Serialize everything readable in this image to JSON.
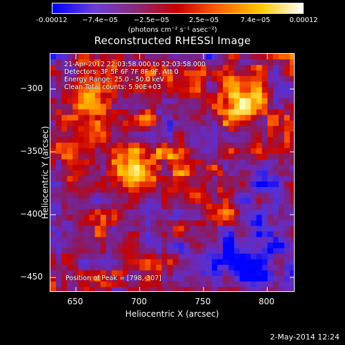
{
  "colorbar": {
    "ticks": [
      "-0.00012",
      "−7.4e−05",
      "−2.5e−05",
      "2.5e−05",
      "7.4e−05",
      "0.00012"
    ],
    "tick_values": [
      -0.00012,
      -7.4e-05,
      -2.5e-05,
      2.5e-05,
      7.4e-05,
      0.00012
    ],
    "units_label": "(photons cm⁻² s⁻¹ asec⁻²)",
    "colors": [
      "#0000ff",
      "#6a3fd6",
      "#8a2a7a",
      "#c80000",
      "#ff6400",
      "#ffc800",
      "#ffffff"
    ]
  },
  "chart_data": {
    "type": "heatmap",
    "title": "Reconstructed RHESSI Image",
    "xlabel": "Heliocentric X (arcsec)",
    "ylabel": "Heliocentric Y (arcsec)",
    "xlim": [
      630,
      822
    ],
    "ylim": [
      -462,
      -272
    ],
    "x_ticks": [
      650,
      700,
      750,
      800
    ],
    "y_ticks": [
      -300,
      -350,
      -400,
      -450
    ],
    "peak": [
      798,
      -307
    ],
    "info_lines": [
      "21-Apr-2012 22:03:58.000 to 22:03:58.000",
      "Detectors: 3F 5F 6F 7F 8F 9F, Att 0",
      "Energy Range: 25.0 - 50.0 keV",
      "Clean    Total counts: 5.90E+03"
    ],
    "peak_label": "Position of Peak = [798,-307]"
  },
  "footer": {
    "date": "2-May-2014 12:24"
  }
}
